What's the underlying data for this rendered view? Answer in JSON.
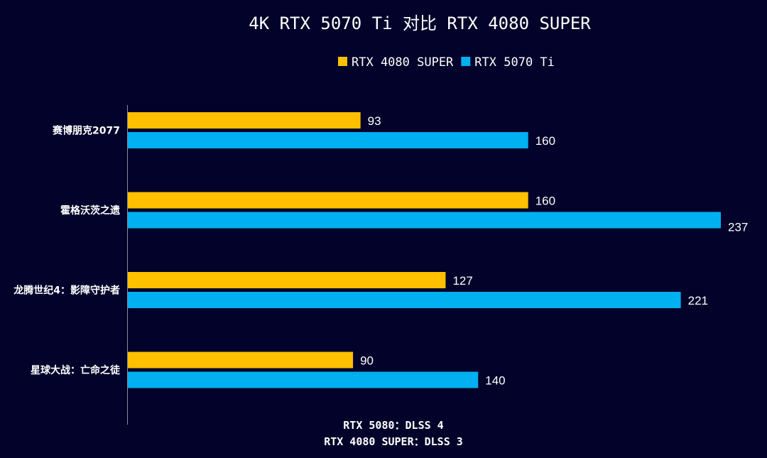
{
  "chart_data": {
    "type": "bar",
    "orientation": "horizontal",
    "title": "4K RTX 5070 Ti 对比 RTX 4080 SUPER",
    "categories": [
      "赛博朋克2077",
      "霍格沃茨之遗",
      "龙腾世纪4：影障守护者",
      "星球大战：亡命之徒"
    ],
    "series": [
      {
        "name": "RTX 4080 SUPER",
        "color": "#ffc000",
        "values": [
          93,
          160,
          127,
          90
        ]
      },
      {
        "name": "RTX 5070 Ti",
        "color": "#00b0f0",
        "values": [
          160,
          237,
          221,
          140
        ]
      }
    ],
    "xlim": [
      0,
      237
    ],
    "legend": "top-center",
    "grid": false,
    "axis_visible": false,
    "footnotes": [
      "RTX 5080：DLSS 4",
      "RTX 4080 SUPER：DLSS 3"
    ]
  },
  "colors": {
    "background": "#02022a",
    "text": "#ffffff",
    "axis_line": "#8a8a9a"
  }
}
